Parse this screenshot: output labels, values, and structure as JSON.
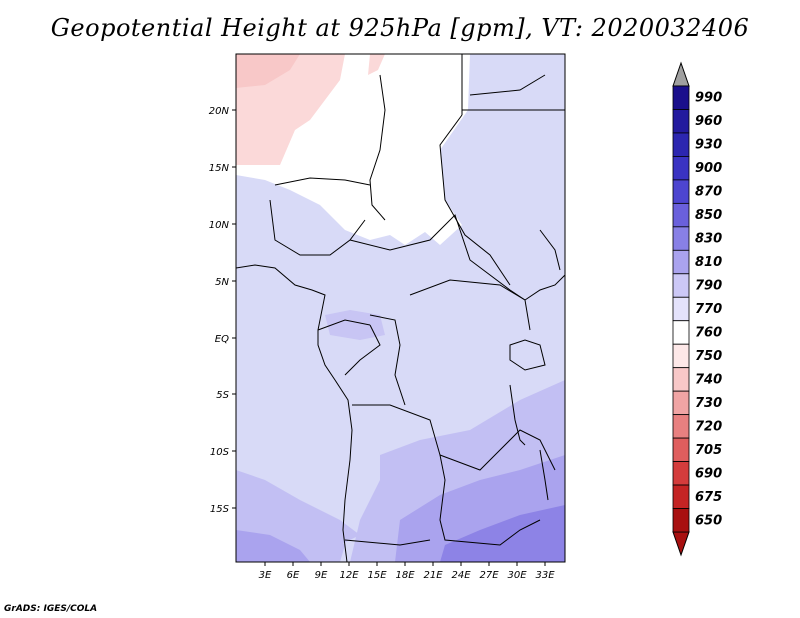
{
  "title": "Geopotential Height at 925hPa [gpm], VT: 2020032406",
  "credit": "GrADS: IGES/COLA",
  "map": {
    "lat_labels": [
      "20N",
      "15N",
      "10N",
      "5N",
      "EQ",
      "5S",
      "10S",
      "15S"
    ],
    "lon_labels": [
      "3E",
      "6E",
      "9E",
      "12E",
      "15E",
      "18E",
      "21E",
      "24E",
      "27E",
      "30E",
      "33E"
    ]
  },
  "colorbar": {
    "labels": [
      "990",
      "960",
      "930",
      "900",
      "870",
      "850",
      "830",
      "810",
      "790",
      "770",
      "760",
      "750",
      "740",
      "730",
      "720",
      "705",
      "690",
      "675",
      "650"
    ],
    "colors": [
      "#1a0f8c",
      "#231a9e",
      "#2c26b0",
      "#3a33c2",
      "#4d45d0",
      "#6a60dc",
      "#8880e6",
      "#aaa3ee",
      "#ccc8f6",
      "#e4e2fb",
      "#ffffff",
      "#fde8e8",
      "#f8c8c8",
      "#f0a4a4",
      "#e88080",
      "#df5e5e",
      "#d43c3c",
      "#c42424",
      "#a81010"
    ]
  },
  "fields": {
    "ocean_color": "#d8daf7",
    "land_low_color": "#d6d7f6",
    "high_color_1": "#c2bff3",
    "high_color_2": "#a8a2ee",
    "high_color_3": "#8d83e6",
    "desert_white": "#ffffff",
    "pink_1": "#fde8e8",
    "pink_2": "#fbd2d2"
  }
}
